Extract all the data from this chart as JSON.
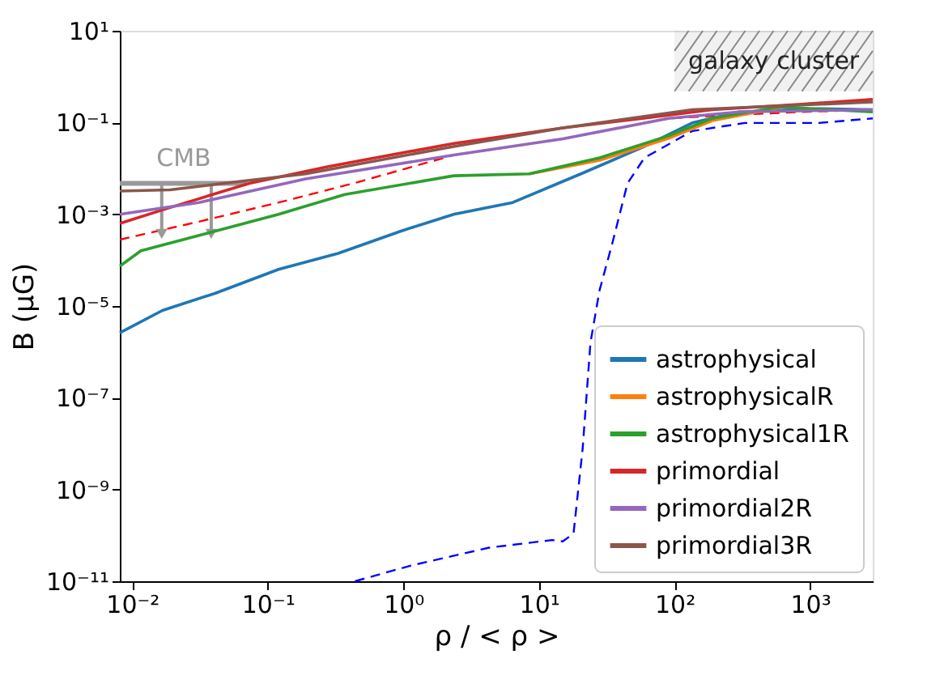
{
  "chart_data": {
    "type": "line",
    "xlabel": "ρ / < ρ >",
    "ylabel": "B (μG)",
    "log": "xy",
    "grid": false,
    "legend": "bottom right",
    "line_style": "solid",
    "marker": "none",
    "xlim": [
      0.0081,
      2900
    ],
    "ylim": [
      1e-11,
      10
    ],
    "xticks": [
      {
        "value": 0.01,
        "label": "10⁻²"
      },
      {
        "value": 0.1,
        "label": "10⁻¹"
      },
      {
        "value": 1,
        "label": "10⁰"
      },
      {
        "value": 10,
        "label": "10¹"
      },
      {
        "value": 100,
        "label": "10²"
      },
      {
        "value": 1000,
        "label": "10³"
      }
    ],
    "yticks": [
      {
        "value": 1e-11,
        "label": "10⁻¹¹"
      },
      {
        "value": 1e-09,
        "label": "10⁻⁹"
      },
      {
        "value": 1e-07,
        "label": "10⁻⁷"
      },
      {
        "value": 1e-05,
        "label": "10⁻⁵"
      },
      {
        "value": 0.001,
        "label": "10⁻³"
      },
      {
        "value": 0.1,
        "label": "10⁻¹"
      },
      {
        "value": 10,
        "label": "10¹"
      }
    ],
    "series": [
      {
        "name": "astrophysical",
        "color": "#1f77b4",
        "x": [
          0.0081,
          0.0167,
          0.041,
          0.12,
          0.33,
          0.96,
          2.35,
          6.4,
          20.4,
          60,
          135,
          300,
          1170,
          2900
        ],
        "values": [
          2.6e-06,
          8e-06,
          1.9e-05,
          6.3e-05,
          0.00014,
          0.00043,
          0.001,
          0.0018,
          0.0076,
          0.03,
          0.098,
          0.17,
          0.2,
          0.19
        ]
      },
      {
        "name": "astrophysicalR",
        "color": "#ff7f0e",
        "x": [
          8.5,
          28,
          90,
          190,
          600
        ],
        "values": [
          0.0076,
          0.015,
          0.045,
          0.11,
          0.21
        ]
      },
      {
        "name": "astrophysical1R",
        "color": "#2ca02c",
        "x": [
          0.0081,
          0.0116,
          0.041,
          0.12,
          0.37,
          2.35,
          8.5,
          28,
          90,
          190,
          600,
          2900
        ],
        "values": [
          7.4e-05,
          0.00016,
          0.00043,
          0.001,
          0.0027,
          0.0069,
          0.0076,
          0.017,
          0.051,
          0.123,
          0.22,
          0.17
        ]
      },
      {
        "name": "primordial",
        "color": "#d62728",
        "x": [
          0.0081,
          0.019,
          0.073,
          0.28,
          2.35,
          15,
          58,
          190,
          860,
          2900
        ],
        "values": [
          0.00063,
          0.0014,
          0.0047,
          0.011,
          0.035,
          0.076,
          0.123,
          0.19,
          0.25,
          0.32
        ]
      },
      {
        "name": "primordial2R",
        "color": "#9467bd",
        "x": [
          0.0081,
          0.031,
          0.19,
          2.35,
          15,
          90,
          300,
          2900
        ],
        "values": [
          0.001,
          0.0018,
          0.0059,
          0.0195,
          0.044,
          0.123,
          0.17,
          0.19
        ]
      },
      {
        "name": "primordial3R",
        "color": "#8c564b",
        "x": [
          0.0081,
          0.019,
          0.047,
          0.19,
          2.35,
          15,
          135,
          2900
        ],
        "values": [
          0.0032,
          0.0034,
          0.0047,
          0.0076,
          0.03,
          0.076,
          0.19,
          0.28
        ]
      },
      {
        "color": "#ff0000",
        "line_style": "dashed",
        "x": [
          0.0081,
          0.031,
          0.12,
          0.46,
          2.35,
          15,
          90,
          250,
          860,
          2900
        ],
        "values": [
          0.00028,
          0.00069,
          0.0018,
          0.005,
          0.0195,
          0.044,
          0.123,
          0.145,
          0.17,
          0.19
        ]
      },
      {
        "color": "#0000ff",
        "line_style": "dashed",
        "x": [
          0.44,
          1.14,
          4.3,
          12.5,
          15,
          18,
          21,
          24,
          28,
          35,
          45,
          60,
          135,
          330,
          1170,
          2900
        ],
        "values": [
          1e-11,
          2.2e-11,
          5.4e-11,
          7.9e-11,
          7.4e-11,
          1.1e-10,
          7.6e-09,
          1.6e-06,
          2.2e-05,
          0.00025,
          0.0047,
          0.017,
          0.065,
          0.098,
          0.098,
          0.123
        ]
      },
      {
        "color": "#999999",
        "x": [
          0.0081,
          0.07
        ],
        "values": [
          0.0047,
          0.0047
        ]
      }
    ],
    "bands": [
      {
        "axis": "x",
        "from": 100,
        "to": 2900,
        "label": "galaxy cluster",
        "color": "#888888"
      }
    ],
    "annotations": [
      {
        "text": "CMB",
        "x": 0.024,
        "y": 0.0047
      }
    ]
  }
}
